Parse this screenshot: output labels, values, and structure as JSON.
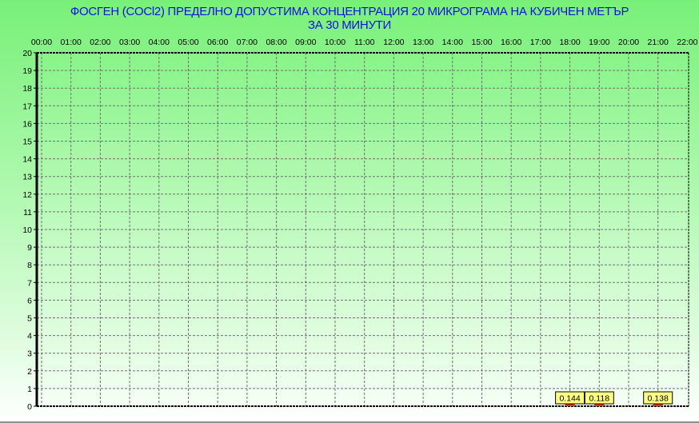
{
  "chart_data": {
    "type": "bar",
    "title": "ФОСГЕН     (COCl2)       ПРЕДЕЛНО ДОПУСТИМА КОНЦЕНТРАЦИЯ 20 МИКРОГРАМА  НА КУБИЧЕН МЕТЪР",
    "subtitle": "ЗА  30 МИНУТИ",
    "categories": [
      "00:00",
      "01:00",
      "02:00",
      "03:00",
      "04:00",
      "05:00",
      "06:00",
      "07:00",
      "08:00",
      "09:00",
      "10:00",
      "11:00",
      "12:00",
      "13:00",
      "14:00",
      "15:00",
      "16:00",
      "17:00",
      "18:00",
      "19:00",
      "20:00",
      "21:00",
      "22:00"
    ],
    "points": [
      {
        "x": "18:00",
        "value": 0.144,
        "label": "0.144"
      },
      {
        "x": "19:00",
        "value": 0.118,
        "label": "0.118"
      },
      {
        "x": "21:00",
        "value": 0.138,
        "label": "0.138"
      }
    ],
    "ylim": [
      0,
      20
    ],
    "yticks": [
      "0",
      "1",
      "2",
      "3",
      "4",
      "5",
      "6",
      "7",
      "8",
      "9",
      "10",
      "11",
      "12",
      "13",
      "14",
      "15",
      "16",
      "17",
      "18",
      "19",
      "20"
    ],
    "xaxis_position": "top",
    "grid": true,
    "colors": {
      "title": "#1010e0",
      "bar": "#e03000",
      "label_bg": "#ffff80",
      "grid": "#707070"
    }
  }
}
